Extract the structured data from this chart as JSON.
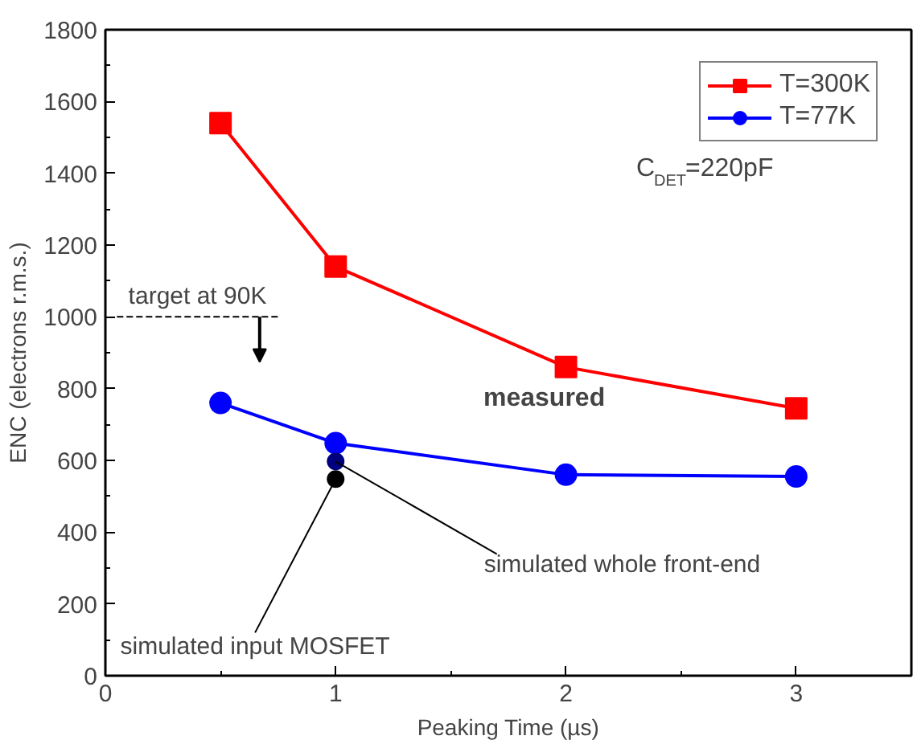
{
  "chart_data": {
    "type": "line",
    "xlabel": "Peaking Time (µs)",
    "ylabel": "ENC (electrons r.m.s.)",
    "x": [
      0.5,
      1,
      2,
      3
    ],
    "series": [
      {
        "name": "T=300K",
        "color": "#ff0000",
        "values": [
          1540,
          1140,
          860,
          745
        ],
        "marker": "square"
      },
      {
        "name": "T=77K",
        "color": "#0000ff",
        "values": [
          760,
          648,
          560,
          555
        ],
        "marker": "circle"
      },
      {
        "type": "line",
        "x": [
          0.05,
          0.75
        ],
        "values": [
          1000,
          1000
        ],
        "color": "#000000",
        "line_style": "dashed",
        "marker": "none"
      },
      {
        "type": "scatter",
        "x": [
          1
        ],
        "values": [
          597
        ],
        "color": "#00007f",
        "marker": "circle"
      },
      {
        "type": "scatter",
        "x": [
          1
        ],
        "values": [
          548
        ],
        "color": "#000000",
        "marker": "circle"
      }
    ],
    "xlim": [
      0,
      3.5
    ],
    "xticks": [
      0,
      1,
      2,
      3
    ],
    "ylim": [
      0,
      1800
    ],
    "yticks": [
      0,
      200,
      400,
      600,
      800,
      1000,
      1200,
      1400,
      1600,
      1800
    ],
    "legend": "top right",
    "grid": false,
    "annotations": [
      "C$_{DET}$=220pF",
      "measured",
      "target at 90K",
      {
        "text": "simulated whole front-end",
        "x": 1,
        "y": 597
      },
      {
        "text": "simulated input MOSFET",
        "x": 1,
        "y": 548
      }
    ]
  }
}
